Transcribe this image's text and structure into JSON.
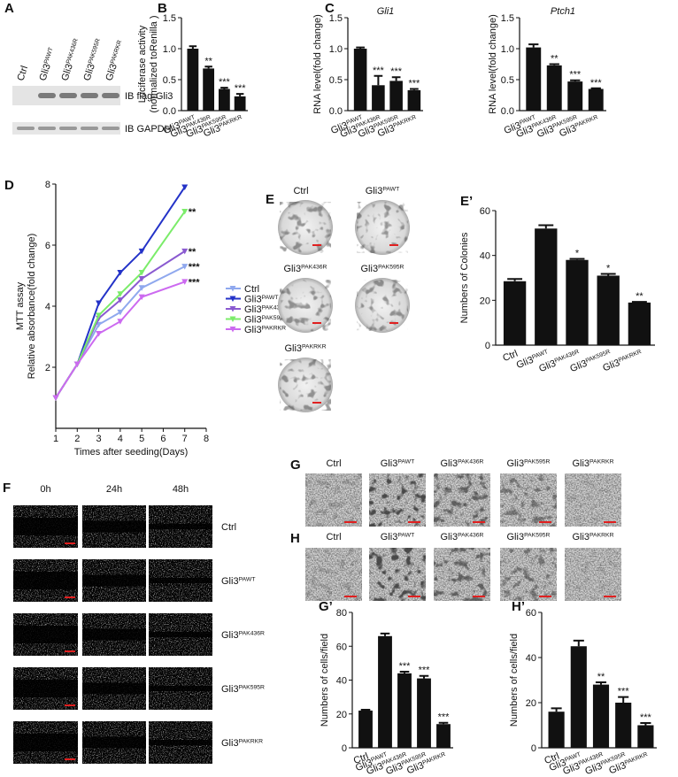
{
  "chart_data": [
    {
      "type": "bar",
      "panel": "B",
      "ylabel": [
        "Luciferase activity",
        "(normalized toRenilla )"
      ],
      "categories": [
        "Gli3PAWT",
        "Gli3PAK436R",
        "Gli3PAK595R",
        "Gli3PAKRKR"
      ],
      "values": [
        1.0,
        0.68,
        0.35,
        0.23
      ],
      "errors": [
        0.04,
        0.03,
        0.02,
        0.04
      ],
      "annotations": [
        null,
        "**",
        "***",
        "***"
      ],
      "color": "#111111",
      "ylim": [
        0,
        1.5
      ],
      "yticks": [
        {
          "value": 0,
          "label": "0.0"
        },
        0.5,
        {
          "value": 1,
          "label": "1.0"
        },
        1.5
      ]
    },
    {
      "type": "bar",
      "panel": "C",
      "title": "Gli1",
      "ylabel": [
        "RNA level(fold change)"
      ],
      "categories": [
        "Gli3PAWT",
        "Gli3PAK436R",
        "Gli3PAK595R",
        "Gli3PAKRKR"
      ],
      "values": [
        1.0,
        0.41,
        0.48,
        0.33
      ],
      "errors": [
        0.02,
        0.15,
        0.06,
        0.02
      ],
      "annotations": [
        null,
        "***",
        "***",
        "***"
      ],
      "color": "#111111",
      "ylim": [
        0,
        1.5
      ],
      "yticks": [
        {
          "value": 0,
          "label": "0.0"
        },
        0.5,
        {
          "value": 1,
          "label": "1.0"
        },
        1.5
      ]
    },
    {
      "type": "bar",
      "title": "Ptch1",
      "ylabel": [
        "RNA level(fold change)"
      ],
      "categories": [
        "Gli3PAWT",
        "Gli3PAK436R",
        "Gli3PAK595R",
        "Gli3PAKRKR"
      ],
      "values": [
        1.02,
        0.73,
        0.47,
        0.35
      ],
      "errors": [
        0.05,
        0.02,
        0.02,
        0.01
      ],
      "annotations": [
        null,
        "**",
        "***",
        "***"
      ],
      "color": "#111111",
      "ylim": [
        0,
        1.5
      ],
      "yticks": [
        {
          "value": 0,
          "label": "0.0"
        },
        0.5,
        {
          "value": 1,
          "label": "1.0"
        },
        1.5
      ]
    },
    {
      "type": "line",
      "panel": "D",
      "ylabel": [
        "MTT assay",
        "Relative absorbance(fold change)"
      ],
      "xlabel": "Times after seeding(Days)",
      "x": [
        1,
        2,
        3,
        4,
        5,
        7
      ],
      "series": [
        {
          "name": "Ctrl",
          "color": "#8fa8ee",
          "values": [
            1,
            2.1,
            3.4,
            3.8,
            4.6,
            5.3
          ],
          "annotation": "***"
        },
        {
          "name": "Gli3PAWT",
          "color": "#2433c8",
          "values": [
            1,
            2.1,
            4.1,
            5.1,
            5.8,
            7.9
          ],
          "annotation": null
        },
        {
          "name": "Gli3PAK436R",
          "color": "#8a5ad0",
          "values": [
            1,
            2.1,
            3.6,
            4.2,
            4.9,
            5.8
          ],
          "annotation": "**"
        },
        {
          "name": "Gli3PAK595R",
          "color": "#7bec6a",
          "values": [
            1,
            2.1,
            3.7,
            4.4,
            5.1,
            7.1
          ],
          "annotation": "**"
        },
        {
          "name": "Gli3PAKRKR",
          "color": "#cc6af0",
          "values": [
            1,
            2.1,
            3.1,
            3.5,
            4.3,
            4.8
          ],
          "annotation": "***"
        }
      ],
      "xlim": [
        1,
        8
      ],
      "xticks": [
        1,
        2,
        3,
        4,
        5,
        6,
        7,
        8
      ],
      "ylim": [
        0,
        8
      ],
      "yticks": [
        2,
        4,
        6,
        8
      ]
    },
    {
      "type": "bar",
      "panel": "E’",
      "ylabel": [
        "Numbers of Colonies"
      ],
      "categories": [
        "Ctrl",
        "Gli3PAWT",
        "Gli3PAK436R",
        "Gli3PAK595R",
        "Gli3PAKRKR"
      ],
      "values": [
        28.5,
        52,
        38,
        31,
        19
      ],
      "errors": [
        1,
        1.5,
        0.5,
        0.8,
        0.3
      ],
      "annotations": [
        null,
        null,
        "*",
        "*",
        "**"
      ],
      "color": "#111111",
      "ylim": [
        0,
        60
      ],
      "yticks": [
        0,
        20,
        40,
        60
      ]
    },
    {
      "type": "bar",
      "panel": "G’",
      "ylabel": [
        "Numbers of cells/field"
      ],
      "categories": [
        "Ctrl",
        "Gli3PAWT",
        "Gli3PAK436R",
        "Gli3PAK595R",
        "Gli3PAKRKR"
      ],
      "values": [
        22,
        66,
        44,
        41,
        14
      ],
      "errors": [
        0.5,
        1.5,
        1,
        1.5,
        0.8
      ],
      "annotations": [
        null,
        null,
        "***",
        "***",
        "***"
      ],
      "color": "#111111",
      "ylim": [
        0,
        80
      ],
      "yticks": [
        0,
        20,
        40,
        60,
        80
      ]
    },
    {
      "type": "bar",
      "panel": "H’",
      "ylabel": [
        "Numbers of cells/field"
      ],
      "categories": [
        "Ctrl",
        "Gli3PAWT",
        "Gli3PAK436R",
        "Gli3PAK595R",
        "Gli3PAKRKR"
      ],
      "values": [
        16,
        45,
        28,
        20,
        10
      ],
      "errors": [
        1.5,
        2.5,
        1,
        2.5,
        1
      ],
      "annotations": [
        null,
        null,
        "**",
        "***",
        "***"
      ],
      "color": "#111111",
      "ylim": [
        0,
        60
      ],
      "yticks": [
        0,
        20,
        40,
        60
      ]
    }
  ],
  "figure": {
    "A": {
      "panel": "A",
      "lanes": [
        "Ctrl",
        "Gli3PAWT",
        "Gli3PAK436R",
        "Gli3PAK595R",
        "Gli3PAKRKR"
      ],
      "blots": [
        "IB flag-Gli3",
        "IB GAPDH"
      ]
    },
    "E": {
      "panel": "E",
      "plates": [
        "Ctrl",
        "Gli3PAWT",
        "Gli3PAK436R",
        "Gli3PAK595R",
        "Gli3PAKRKR"
      ]
    },
    "F": {
      "panel": "F",
      "columns": [
        "0h",
        "24h",
        "48h"
      ],
      "rows": [
        "Ctrl",
        "Gli3PAWT",
        "Gli3PAK436R",
        "Gli3PAK595R",
        "Gli3PAKRKR"
      ]
    },
    "G": {
      "panel": "G",
      "columns": [
        "Ctrl",
        "Gli3PAWT",
        "Gli3PAK436R",
        "Gli3PAK595R",
        "Gli3PAKRKR"
      ]
    },
    "H": {
      "panel": "H",
      "columns": [
        "Ctrl",
        "Gli3PAWT",
        "Gli3PAK436R",
        "Gli3PAK595R",
        "Gli3PAKRKR"
      ]
    }
  }
}
